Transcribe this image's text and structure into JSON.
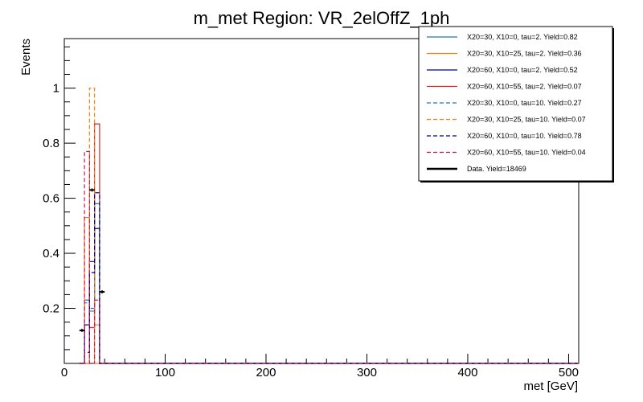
{
  "chart_data": {
    "type": "histogram",
    "title": "m_met Region: VR_2elOffZ_1ph",
    "xlabel": "met [GeV]",
    "ylabel": "Events",
    "xlim": [
      0,
      510
    ],
    "ylim": [
      0,
      1.18
    ],
    "x_ticks": [
      0,
      100,
      200,
      300,
      400,
      500
    ],
    "x_tick_labels": [
      "0",
      "100",
      "200",
      "300",
      "400",
      "500"
    ],
    "y_ticks": [
      0.2,
      0.4,
      0.6,
      0.8,
      1.0
    ],
    "y_tick_labels": [
      "0.2",
      "0.4",
      "0.6",
      "0.8",
      "1"
    ],
    "bin_edges": [
      15,
      20,
      25,
      30,
      35,
      40
    ],
    "legend_position": "top-right",
    "series": [
      {
        "name": "X20=30, X10=0, tau=2. Yield=0.82",
        "color": "#1f77b4",
        "style": "solid",
        "values": [
          0,
          0.23,
          0.19,
          0.58,
          0
        ]
      },
      {
        "name": "X20=30, X10=25, tau=2. Yield=0.36",
        "color": "#ff7f0e",
        "style": "solid",
        "values": [
          0,
          0.53,
          0.13,
          0.14,
          0
        ]
      },
      {
        "name": "X20=60, X10=0, tau=2. Yield=0.52",
        "color": "#000080",
        "style": "solid",
        "values": [
          0,
          0.14,
          0.37,
          0.49,
          0
        ]
      },
      {
        "name": "X20=60, X10=55, tau=2. Yield=0.07",
        "color": "#d62728",
        "style": "solid",
        "values": [
          0,
          0,
          0.13,
          0.87,
          0
        ]
      },
      {
        "name": "X20=30, X10=0, tau=10. Yield=0.27",
        "color": "#1f77b4",
        "style": "dashed",
        "values": [
          0,
          0.22,
          0.2,
          0.58,
          0
        ]
      },
      {
        "name": "X20=30, X10=25, tau=10. Yield=0.07",
        "color": "#ff7f0e",
        "style": "dashed",
        "values": [
          0,
          0,
          1.0,
          0,
          0
        ]
      },
      {
        "name": "X20=60, X10=0, tau=10. Yield=0.78",
        "color": "#000080",
        "style": "dashed",
        "values": [
          0,
          0.04,
          0.33,
          0.62,
          0
        ]
      },
      {
        "name": "X20=60, X10=55, tau=10. Yield=0.04",
        "color": "#c2185b",
        "style": "dashed",
        "values": [
          0,
          0.77,
          0,
          0.23,
          0
        ]
      }
    ],
    "data": {
      "name": "Data. Yield=18469",
      "color": "#000000",
      "points": [
        {
          "x": 17.5,
          "y": 0.12
        },
        {
          "x": 27.5,
          "y": 0.63
        },
        {
          "x": 37.5,
          "y": 0.26
        }
      ]
    }
  }
}
